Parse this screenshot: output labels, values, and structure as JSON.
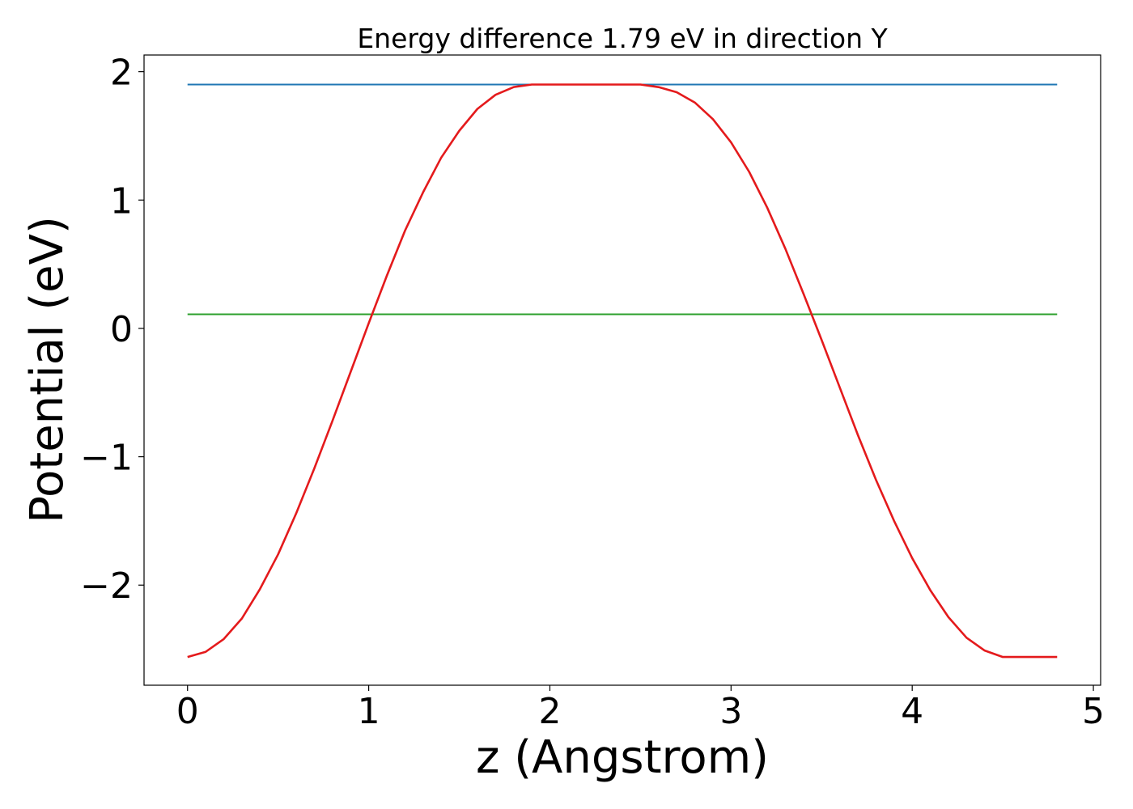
{
  "chart_data": {
    "type": "line",
    "title": "Energy difference 1.79 eV in direction Y",
    "xlabel": "z (Angstrom)",
    "ylabel": "Potential (eV)",
    "xlim": [
      -0.24,
      5.04
    ],
    "ylim": [
      -2.78,
      2.13
    ],
    "x_ticks": [
      0,
      1,
      2,
      3,
      4,
      5
    ],
    "x_tick_labels": [
      "0",
      "1",
      "2",
      "3",
      "4",
      "5"
    ],
    "y_ticks": [
      -2,
      -1,
      0,
      1,
      2
    ],
    "y_tick_labels": [
      "−2",
      "−1",
      "0",
      "1",
      "2"
    ],
    "grid": false,
    "legend": "none",
    "series": [
      {
        "color": "#1f77b4",
        "x": [
          0,
          4.8
        ],
        "y": [
          1.9,
          1.9
        ]
      },
      {
        "color": "#2ca02c",
        "x": [
          0,
          4.8
        ],
        "y": [
          0.11,
          0.11
        ]
      },
      {
        "color": "#e41a1c",
        "x": [
          0,
          0.1,
          0.2,
          0.3,
          0.4,
          0.5,
          0.6,
          0.7,
          0.8,
          0.9,
          1.0,
          1.1,
          1.2,
          1.3,
          1.4,
          1.5,
          1.6,
          1.7,
          1.8,
          1.9,
          2.0,
          2.1,
          2.2,
          2.3,
          2.4,
          2.5,
          2.6,
          2.7,
          2.8,
          2.9,
          3.0,
          3.1,
          3.2,
          3.3,
          3.4,
          3.5,
          3.6,
          3.7,
          3.8,
          3.9,
          4.0,
          4.1,
          4.2,
          4.3,
          4.4,
          4.5,
          4.6,
          4.7,
          4.8
        ],
        "y": [
          -2.56,
          -2.52,
          -2.42,
          -2.26,
          -2.03,
          -1.76,
          -1.44,
          -1.09,
          -0.72,
          -0.34,
          0.04,
          0.41,
          0.76,
          1.06,
          1.33,
          1.54,
          1.71,
          1.82,
          1.88,
          1.9,
          1.9,
          1.9,
          1.9,
          1.9,
          1.9,
          1.9,
          1.88,
          1.84,
          1.76,
          1.63,
          1.45,
          1.22,
          0.94,
          0.62,
          0.27,
          -0.09,
          -0.46,
          -0.83,
          -1.18,
          -1.5,
          -1.79,
          -2.04,
          -2.25,
          -2.41,
          -2.51,
          -2.56,
          -2.56,
          -2.56,
          -2.56
        ]
      }
    ]
  }
}
